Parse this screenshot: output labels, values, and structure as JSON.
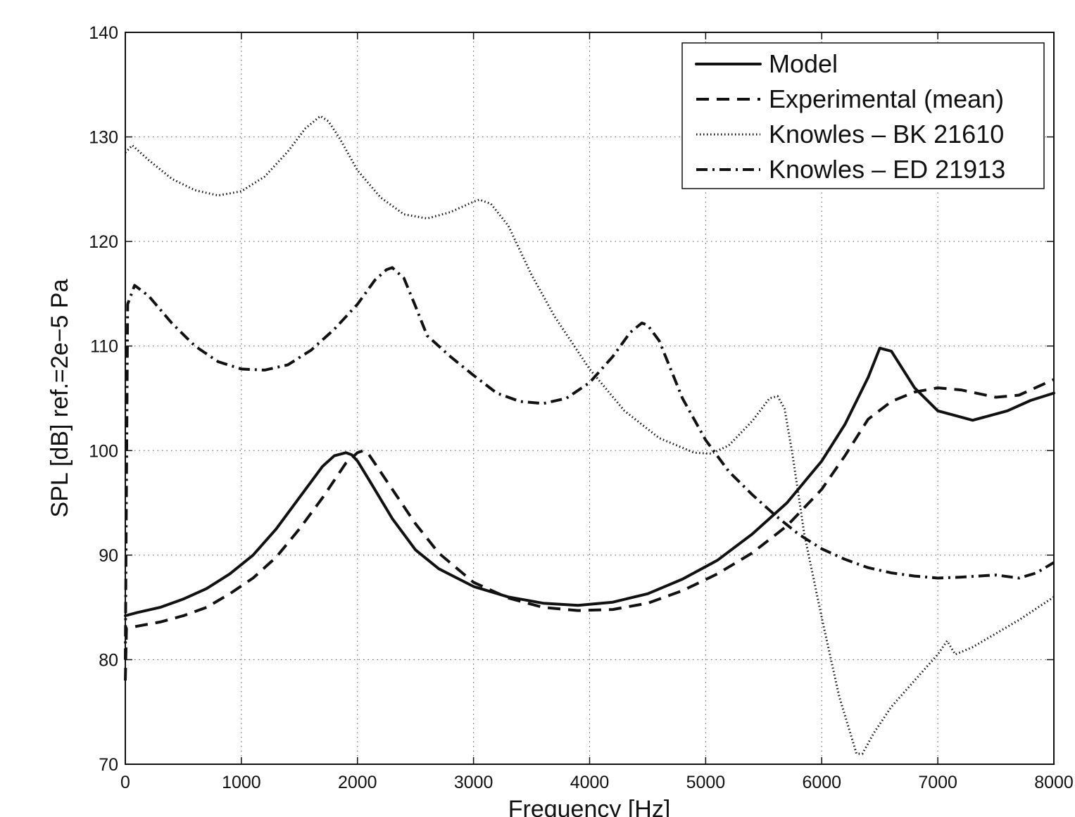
{
  "chart_data": {
    "type": "line",
    "xlabel": "Frequency [Hz]",
    "ylabel": "SPL [dB] ref.=2e−5 Pa",
    "xlim": [
      0,
      8000
    ],
    "ylim": [
      70,
      140
    ],
    "grid": true,
    "legend_position": "top-right",
    "x_ticks": [
      0,
      1000,
      2000,
      3000,
      4000,
      5000,
      6000,
      7000,
      8000
    ],
    "y_ticks": [
      70,
      80,
      90,
      100,
      110,
      120,
      130,
      140
    ],
    "x_tick_labels": [
      "0",
      "1000",
      "2000",
      "3000",
      "4000",
      "5000",
      "6000",
      "7000",
      "8000"
    ],
    "y_tick_labels": [
      "70",
      "80",
      "90",
      "100",
      "110",
      "120",
      "130",
      "140"
    ],
    "series": [
      {
        "name": "Model",
        "style": "solid",
        "x": [
          0,
          100,
          300,
          500,
          700,
          900,
          1100,
          1300,
          1500,
          1700,
          1800,
          1900,
          1950,
          2000,
          2100,
          2300,
          2500,
          2700,
          3000,
          3300,
          3600,
          3900,
          4200,
          4500,
          4800,
          5100,
          5400,
          5700,
          6000,
          6200,
          6400,
          6500,
          6600,
          6800,
          7000,
          7300,
          7600,
          7800,
          8000
        ],
        "y": [
          84.2,
          84.5,
          85.0,
          85.8,
          86.8,
          88.2,
          90.0,
          92.5,
          95.5,
          98.5,
          99.5,
          99.8,
          99.6,
          99.0,
          97.2,
          93.5,
          90.5,
          88.7,
          87.0,
          86.0,
          85.4,
          85.2,
          85.5,
          86.3,
          87.7,
          89.5,
          92.0,
          95.0,
          99.0,
          102.5,
          107.0,
          109.8,
          109.5,
          106.0,
          103.8,
          102.9,
          103.8,
          104.8,
          105.5
        ]
      },
      {
        "name": "Experimental (mean)",
        "style": "dashed",
        "x": [
          0,
          10,
          100,
          300,
          500,
          700,
          900,
          1100,
          1300,
          1500,
          1700,
          1900,
          2000,
          2050,
          2100,
          2300,
          2500,
          2700,
          3000,
          3300,
          3600,
          3900,
          4200,
          4500,
          4800,
          5100,
          5400,
          5700,
          6000,
          6200,
          6400,
          6600,
          6800,
          7000,
          7200,
          7500,
          7700,
          8000
        ],
        "y": [
          78.0,
          83.0,
          83.2,
          83.6,
          84.2,
          85.0,
          86.3,
          87.8,
          89.8,
          92.5,
          95.5,
          98.8,
          99.8,
          100.0,
          99.6,
          96.3,
          93.0,
          90.2,
          87.4,
          85.9,
          85.0,
          84.7,
          84.8,
          85.4,
          86.6,
          88.2,
          90.2,
          92.8,
          96.3,
          99.5,
          103.0,
          104.7,
          105.6,
          106.0,
          105.8,
          105.1,
          105.3,
          106.8
        ]
      },
      {
        "name": "Knowles – BK 21610",
        "style": "dotted",
        "x": [
          0,
          60,
          200,
          400,
          600,
          800,
          1000,
          1200,
          1400,
          1550,
          1680,
          1750,
          1850,
          2000,
          2200,
          2400,
          2600,
          2800,
          3000,
          3050,
          3150,
          3300,
          3500,
          3700,
          4000,
          4300,
          4600,
          4900,
          5050,
          5200,
          5400,
          5550,
          5620,
          5680,
          5750,
          5850,
          6000,
          6150,
          6300,
          6350,
          6450,
          6600,
          6800,
          7000,
          7080,
          7150,
          7300,
          7500,
          7700,
          8000
        ],
        "y": [
          128.5,
          129.2,
          127.8,
          126.0,
          124.9,
          124.4,
          124.8,
          126.2,
          128.6,
          130.8,
          132.0,
          131.5,
          129.8,
          126.8,
          124.2,
          122.6,
          122.2,
          122.8,
          123.8,
          124.0,
          123.6,
          121.5,
          116.8,
          112.8,
          107.8,
          103.8,
          101.2,
          99.8,
          99.7,
          100.5,
          102.8,
          105.0,
          105.2,
          104.0,
          99.5,
          92.0,
          84.0,
          76.5,
          71.0,
          71.0,
          73.0,
          75.5,
          78.0,
          80.5,
          81.8,
          80.5,
          81.2,
          82.5,
          83.8,
          86.0
        ]
      },
      {
        "name": "Knowles – ED 21913",
        "style": "dashdot",
        "x": [
          0,
          20,
          80,
          200,
          400,
          600,
          800,
          1000,
          1200,
          1400,
          1600,
          1800,
          2000,
          2150,
          2250,
          2300,
          2400,
          2500,
          2600,
          2800,
          3000,
          3200,
          3400,
          3600,
          3800,
          4000,
          4200,
          4350,
          4450,
          4500,
          4600,
          4800,
          5000,
          5200,
          5400,
          5600,
          5800,
          6000,
          6200,
          6400,
          6600,
          6800,
          7000,
          7200,
          7500,
          7700,
          7850,
          8000
        ],
        "y": [
          80.0,
          114.0,
          115.8,
          114.8,
          112.2,
          110.0,
          108.5,
          107.8,
          107.7,
          108.2,
          109.6,
          111.6,
          114.0,
          116.3,
          117.3,
          117.5,
          116.5,
          113.8,
          111.0,
          109.0,
          107.2,
          105.5,
          104.7,
          104.5,
          105.0,
          106.5,
          109.0,
          111.3,
          112.2,
          112.0,
          110.5,
          105.0,
          101.0,
          98.0,
          95.8,
          93.8,
          92.0,
          90.6,
          89.6,
          88.8,
          88.3,
          88.0,
          87.8,
          87.9,
          88.1,
          87.8,
          88.3,
          89.3
        ]
      }
    ]
  }
}
